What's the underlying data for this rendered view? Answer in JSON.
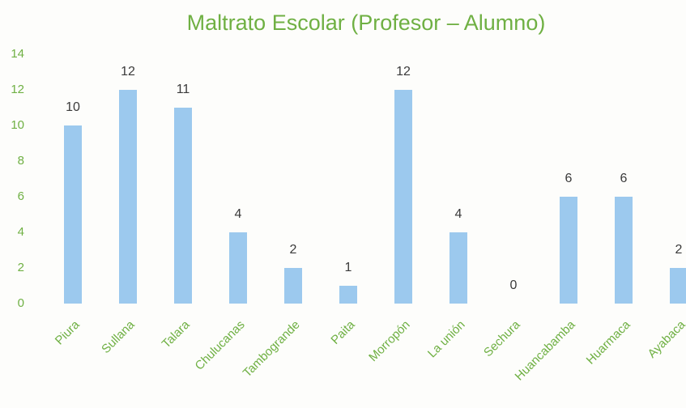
{
  "chart_data": {
    "type": "bar",
    "title": "Maltrato Escolar (Profesor – Alumno)",
    "categories": [
      "Piura",
      "Sullana",
      "Talara",
      "Chulucanas",
      "Tambogrande",
      "Paita",
      "Morropón",
      "La unión",
      "Sechura",
      "Huancabamba",
      "Huarmaca",
      "Ayabaca"
    ],
    "values": [
      10,
      12,
      11,
      4,
      2,
      1,
      12,
      4,
      0,
      6,
      6,
      2
    ],
    "color": "#9cc9ee",
    "ylim": [
      0,
      14
    ],
    "yticks": [
      0,
      2,
      4,
      6,
      8,
      10,
      12,
      14
    ],
    "grid": false
  }
}
